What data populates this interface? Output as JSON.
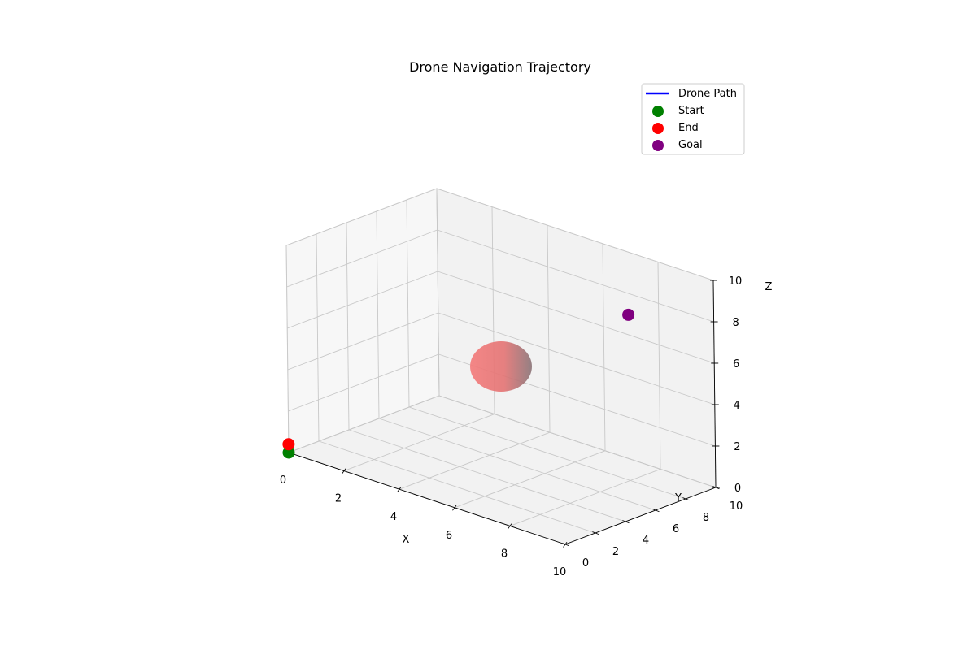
{
  "chart_data": {
    "type": "scatter3d",
    "title": "Drone Navigation Trajectory",
    "xlabel": "X",
    "ylabel": "Y",
    "zlabel": "Z",
    "xlim": [
      0,
      10
    ],
    "ylim": [
      0,
      10
    ],
    "zlim": [
      0,
      10
    ],
    "xticks": [
      "0",
      "2",
      "4",
      "6",
      "8",
      "10"
    ],
    "yticks": [
      "0",
      "2",
      "4",
      "6",
      "8",
      "10"
    ],
    "zticks": [
      "0",
      "2",
      "4",
      "6",
      "8",
      "10"
    ],
    "grid": true,
    "legend_position": "top-right",
    "legend": [
      {
        "label": "Drone Path",
        "marker": "line",
        "color": "#0000ff"
      },
      {
        "label": "Start",
        "marker": "dot",
        "color": "#008000"
      },
      {
        "label": "End",
        "marker": "dot",
        "color": "#ff0000"
      },
      {
        "label": "Goal",
        "marker": "dot",
        "color": "#800080"
      }
    ],
    "points": [
      {
        "name": "Start",
        "x": 0.0,
        "y": 0.0,
        "z": 0.0,
        "color": "#008000"
      },
      {
        "name": "End",
        "x": 0.0,
        "y": 0.0,
        "z": 0.4,
        "color": "#ff0000"
      },
      {
        "name": "Goal",
        "x": 8.0,
        "y": 8.0,
        "z": 8.0,
        "color": "#800080"
      }
    ],
    "path": [],
    "obstacle": {
      "shape": "sphere",
      "center": [
        5,
        5,
        5
      ],
      "radius": 1,
      "color": "#f08080"
    }
  }
}
